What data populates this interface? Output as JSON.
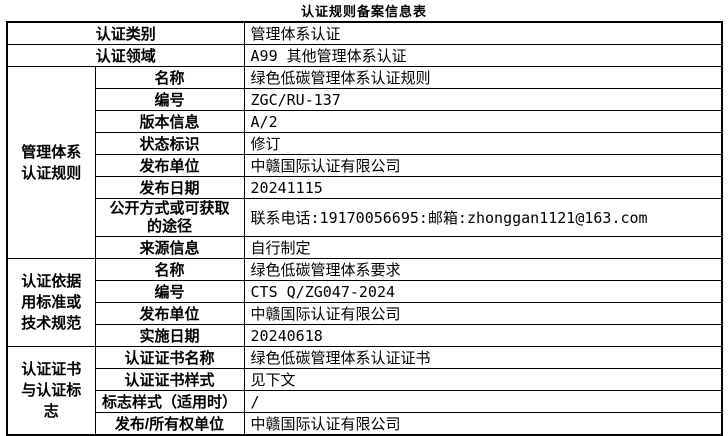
{
  "title": "认证规则备案信息表",
  "colors": {
    "border": "#000000",
    "text": "#000000",
    "background": "#ffffff"
  },
  "table": {
    "top_rows": [
      {
        "label": "认证类别",
        "value": "管理体系认证"
      },
      {
        "label": "认证领域",
        "value": "A99 其他管理体系认证"
      }
    ],
    "sections": [
      {
        "header": "管理体系认证规则",
        "rows": [
          {
            "label": "名称",
            "value": "绿色低碳管理体系认证规则"
          },
          {
            "label": "编号",
            "value": "ZGC/RU-137"
          },
          {
            "label": "版本信息",
            "value": "A/2"
          },
          {
            "label": "状态标识",
            "value": "修订"
          },
          {
            "label": "发布单位",
            "value": "中赣国际认证有限公司"
          },
          {
            "label": "发布日期",
            "value": "20241115"
          },
          {
            "label": "公开方式或可获取的途径",
            "value": "联系电话:19170056695:邮箱:zhonggan1121@163.com"
          },
          {
            "label": "来源信息",
            "value": "自行制定"
          }
        ]
      },
      {
        "header": "认证依据用标准或技术规范",
        "rows": [
          {
            "label": "名称",
            "value": "绿色低碳管理体系要求"
          },
          {
            "label": "编号",
            "value": "CTS Q/ZG047-2024"
          },
          {
            "label": "发布单位",
            "value": "中赣国际认证有限公司"
          },
          {
            "label": "实施日期",
            "value": "20240618"
          }
        ]
      },
      {
        "header": "认证证书与认证标志",
        "rows": [
          {
            "label": "认证证书名称",
            "value": "绿色低碳管理体系认证证书"
          },
          {
            "label": "认证证书样式",
            "value": "见下文"
          },
          {
            "label": "标志样式（适用时）",
            "value": "/"
          },
          {
            "label": "发布/所有权单位",
            "value": "中赣国际认证有限公司"
          }
        ]
      }
    ]
  }
}
